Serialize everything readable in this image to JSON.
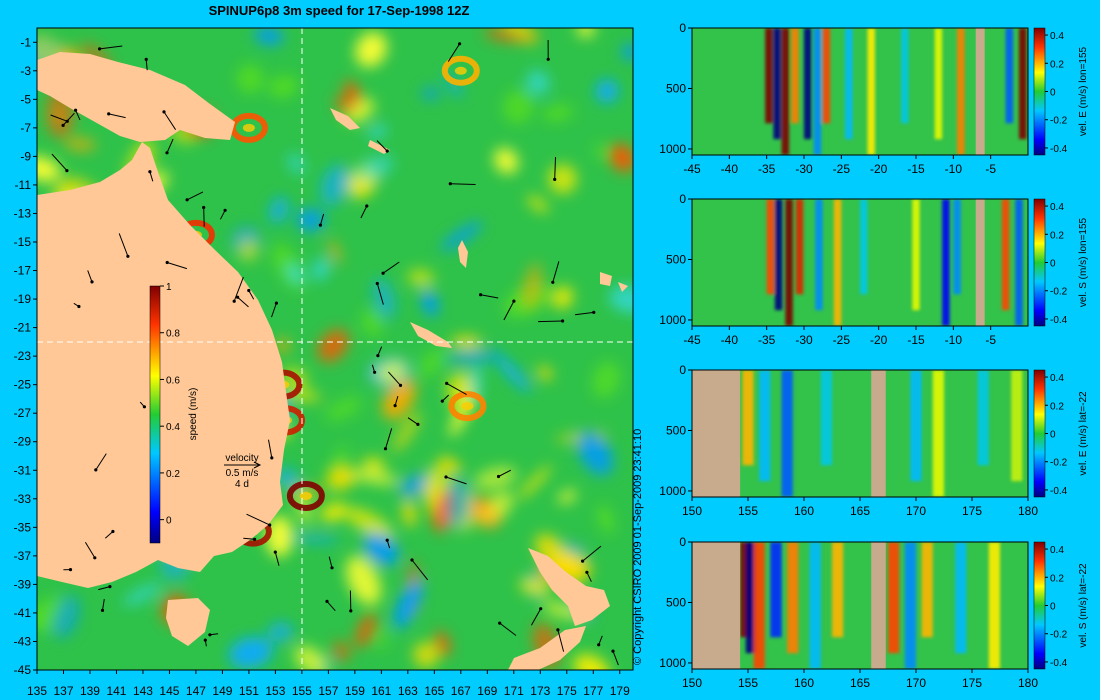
{
  "title": "SPINUP6p8 3m speed for 17-Sep-1998 12Z",
  "copyright": "© Copyright CSIRO 2009   01-Sep-2009 23:41:10",
  "colors": {
    "background": "#00ccff",
    "land": "#ffc896",
    "section_land": "#c8aa8c",
    "guide_line": "#ffffff",
    "arrow": "#000000"
  },
  "chart_data": [
    {
      "type": "heatmap",
      "title": "SPINUP6p8 3m speed for 17-Sep-1998 12Z",
      "x_ticks": [
        "135",
        "137",
        "139",
        "141",
        "143",
        "145",
        "147",
        "149",
        "151",
        "153",
        "155",
        "157",
        "159",
        "161",
        "163",
        "165",
        "167",
        "169",
        "171",
        "173",
        "175",
        "177",
        "179"
      ],
      "y_ticks": [
        "-1",
        "-3",
        "-5",
        "-7",
        "-9",
        "-11",
        "-13",
        "-15",
        "-17",
        "-19",
        "-21",
        "-23",
        "-25",
        "-27",
        "-29",
        "-31",
        "-33",
        "-35",
        "-37",
        "-39",
        "-41",
        "-43",
        "-45"
      ],
      "xlim": [
        135,
        180
      ],
      "ylim": [
        -45,
        0
      ],
      "guide_lon": 155,
      "guide_lat": -22,
      "colorbar": {
        "label": "speed (m/s)",
        "range": [
          -0.1,
          1
        ],
        "ticks": [
          "0",
          "0.2",
          "0.4",
          "0.6",
          "0.8",
          "1"
        ]
      },
      "velocity_legend": {
        "title": "velocity",
        "speed": "0.5 m/s",
        "duration": "4 d"
      },
      "features": [
        {
          "lon": 155.3,
          "lat": -32.8,
          "speed": 1.0
        },
        {
          "lon": 151.3,
          "lat": -35.3,
          "speed": 0.95
        },
        {
          "lon": 153.6,
          "lat": -25.0,
          "speed": 0.95
        },
        {
          "lon": 153.8,
          "lat": -27.5,
          "speed": 0.9
        },
        {
          "lon": 147.0,
          "lat": -14.5,
          "speed": 0.85
        },
        {
          "lon": 151.0,
          "lat": -7.0,
          "speed": 0.8
        },
        {
          "lon": 167.5,
          "lat": -26.5,
          "speed": 0.75
        },
        {
          "lon": 167.0,
          "lat": -3.0,
          "speed": 0.7
        }
      ]
    },
    {
      "type": "heatmap",
      "section": "lon=155",
      "variable": "vel. E (m/s)",
      "colorbar_label": "vel. E (m/s) lon=155",
      "x_ticks": [
        "-45",
        "-40",
        "-35",
        "-30",
        "-25",
        "-20",
        "-15",
        "-10",
        "-5"
      ],
      "xlim": [
        -45,
        0
      ],
      "y_ticks": [
        "0",
        "500",
        "1000"
      ],
      "ylim": [
        0,
        1050
      ],
      "colorbar_ticks": [
        "0.4",
        "0.2",
        "0",
        "-0.2",
        "-0.4"
      ],
      "crange": [
        -0.45,
        0.45
      ],
      "land_x": [
        [
          -7.0,
          -5.8
        ]
      ],
      "bands": [
        {
          "x": -34.7,
          "v": 0.45
        },
        {
          "x": -33.6,
          "v": -0.45
        },
        {
          "x": -32.5,
          "v": 0.45
        },
        {
          "x": -31.2,
          "v": 0.25
        },
        {
          "x": -29.5,
          "v": -0.45
        },
        {
          "x": -28.2,
          "v": -0.2
        },
        {
          "x": -27.0,
          "v": 0.3
        },
        {
          "x": -24.0,
          "v": -0.15
        },
        {
          "x": -21.0,
          "v": 0.15
        },
        {
          "x": -16.5,
          "v": -0.12
        },
        {
          "x": -12.0,
          "v": 0.12
        },
        {
          "x": -9.0,
          "v": 0.25
        },
        {
          "x": -2.5,
          "v": -0.25
        },
        {
          "x": -0.7,
          "v": 0.45
        }
      ]
    },
    {
      "type": "heatmap",
      "section": "lon=155",
      "variable": "vel. S (m/s)",
      "colorbar_label": "vel. S (m/s) lon=155",
      "x_ticks": [
        "-45",
        "-40",
        "-35",
        "-30",
        "-25",
        "-20",
        "-15",
        "-10",
        "-5"
      ],
      "xlim": [
        -45,
        0
      ],
      "y_ticks": [
        "0",
        "500",
        "1000"
      ],
      "ylim": [
        0,
        1050
      ],
      "colorbar_ticks": [
        "0.4",
        "0.2",
        "0",
        "-0.2",
        "-0.4"
      ],
      "crange": [
        -0.45,
        0.45
      ],
      "land_x": [
        [
          -7.0,
          -5.8
        ]
      ],
      "bands": [
        {
          "x": -34.5,
          "v": 0.3
        },
        {
          "x": -33.4,
          "v": -0.45
        },
        {
          "x": -32.0,
          "v": 0.45
        },
        {
          "x": -30.6,
          "v": 0.35
        },
        {
          "x": -28.0,
          "v": -0.2
        },
        {
          "x": -25.5,
          "v": 0.2
        },
        {
          "x": -22.0,
          "v": -0.12
        },
        {
          "x": -15.0,
          "v": 0.12
        },
        {
          "x": -11.0,
          "v": -0.35
        },
        {
          "x": -9.5,
          "v": -0.2
        },
        {
          "x": -3.0,
          "v": 0.3
        },
        {
          "x": -1.2,
          "v": -0.25
        }
      ]
    },
    {
      "type": "heatmap",
      "section": "lat=-22",
      "variable": "vel. E (m/s)",
      "colorbar_label": "vel. E (m/s) lat=-22",
      "x_ticks": [
        "150",
        "155",
        "160",
        "165",
        "170",
        "175",
        "180"
      ],
      "xlim": [
        150,
        180
      ],
      "y_ticks": [
        "0",
        "500",
        "1000"
      ],
      "ylim": [
        0,
        1050
      ],
      "colorbar_ticks": [
        "0.4",
        "0.2",
        "0",
        "-0.2",
        "-0.4"
      ],
      "crange": [
        -0.45,
        0.45
      ],
      "land_x": [
        [
          150,
          154.3
        ],
        [
          166.0,
          167.3
        ]
      ],
      "bands": [
        {
          "x": 155.0,
          "v": 0.2
        },
        {
          "x": 156.5,
          "v": -0.15
        },
        {
          "x": 158.5,
          "v": -0.25
        },
        {
          "x": 162.0,
          "v": -0.12
        },
        {
          "x": 170.0,
          "v": -0.15
        },
        {
          "x": 172.0,
          "v": 0.12
        },
        {
          "x": 176.0,
          "v": -0.12
        },
        {
          "x": 179.0,
          "v": 0.1
        }
      ]
    },
    {
      "type": "heatmap",
      "section": "lat=-22",
      "variable": "vel. S (m/s)",
      "colorbar_label": "vel. S (m/s) lat=-22",
      "x_ticks": [
        "150",
        "155",
        "160",
        "165",
        "170",
        "175",
        "180"
      ],
      "xlim": [
        150,
        180
      ],
      "y_ticks": [
        "0",
        "500",
        "1000"
      ],
      "ylim": [
        0,
        1050
      ],
      "colorbar_ticks": [
        "0.4",
        "0.2",
        "0",
        "-0.2",
        "-0.4"
      ],
      "crange": [
        -0.45,
        0.45
      ],
      "land_x": [
        [
          150,
          154.3
        ],
        [
          166.0,
          167.3
        ]
      ],
      "bands": [
        {
          "x": 154.8,
          "v": 0.45
        },
        {
          "x": 155.3,
          "v": -0.45
        },
        {
          "x": 156.0,
          "v": 0.3
        },
        {
          "x": 157.5,
          "v": -0.3
        },
        {
          "x": 159.0,
          "v": 0.25
        },
        {
          "x": 161.0,
          "v": -0.15
        },
        {
          "x": 163.0,
          "v": 0.2
        },
        {
          "x": 168.0,
          "v": 0.3
        },
        {
          "x": 169.5,
          "v": -0.2
        },
        {
          "x": 171.0,
          "v": 0.2
        },
        {
          "x": 174.0,
          "v": -0.15
        },
        {
          "x": 177.0,
          "v": 0.15
        }
      ]
    }
  ]
}
